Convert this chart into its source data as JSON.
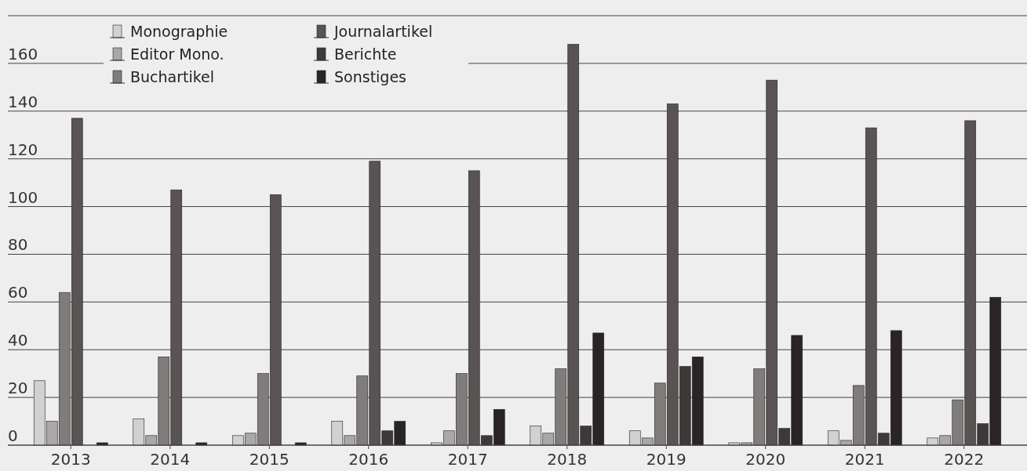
{
  "chart_data": {
    "type": "bar",
    "categories": [
      "2013",
      "2014",
      "2015",
      "2016",
      "2017",
      "2018",
      "2019",
      "2020",
      "2021",
      "2022"
    ],
    "series": [
      {
        "name": "Monographie",
        "color": "#d2d0d0",
        "values": [
          27,
          11,
          4,
          10,
          1,
          8,
          6,
          1,
          6,
          3
        ]
      },
      {
        "name": "Editor Mono.",
        "color": "#a9a7a7",
        "values": [
          10,
          4,
          5,
          4,
          6,
          5,
          3,
          1,
          2,
          4
        ]
      },
      {
        "name": "Buchartikel",
        "color": "#807c7c",
        "values": [
          64,
          37,
          30,
          29,
          30,
          32,
          26,
          32,
          25,
          19
        ]
      },
      {
        "name": "Journalartikel",
        "color": "#595353",
        "values": [
          137,
          107,
          105,
          119,
          115,
          168,
          143,
          153,
          133,
          136
        ]
      },
      {
        "name": "Berichte",
        "color": "#3e3939",
        "values": [
          0,
          0,
          0,
          6,
          4,
          8,
          33,
          7,
          5,
          9
        ]
      },
      {
        "name": "Sonstiges",
        "color": "#2a2424",
        "values": [
          1,
          1,
          1,
          10,
          15,
          47,
          37,
          46,
          48,
          62
        ]
      }
    ],
    "ylim": [
      0,
      180
    ],
    "yticks": [
      0,
      20,
      40,
      60,
      80,
      100,
      120,
      140,
      160,
      {
        "value": 180,
        "label": null
      }
    ],
    "grid": "y",
    "legend": "top left"
  }
}
